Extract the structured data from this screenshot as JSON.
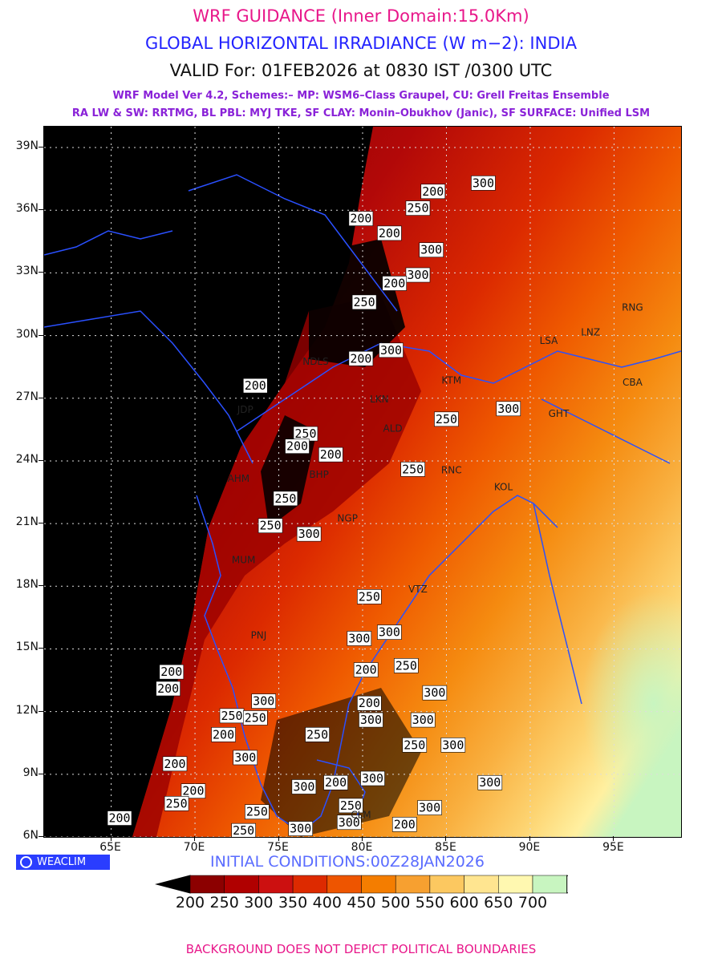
{
  "titles": {
    "line1": "WRF GUIDANCE (Inner Domain:15.0Km)",
    "line2": "GLOBAL HORIZONTAL IRRADIANCE (W m−2): INDIA",
    "line3": "VALID For: 01FEB2026 at 0830 IST /0300 UTC",
    "line4": "WRF Model Ver 4.2, Schemes:– MP: WSM6–Class Graupel, CU: Grell Freitas Ensemble",
    "line5": "RA LW & SW: RRTMG, BL PBL: MYJ TKE, SF CLAY: Monin–Obukhov (Janic), SF SURFACE: Unified LSM"
  },
  "map": {
    "lon_range": [
      61,
      99
    ],
    "lat_range": [
      6,
      40
    ],
    "lat_ticks": [
      "39N",
      "36N",
      "33N",
      "30N",
      "27N",
      "24N",
      "21N",
      "18N",
      "15N",
      "12N",
      "9N",
      "6N"
    ],
    "lon_ticks": [
      "65E",
      "70E",
      "75E",
      "80E",
      "85E",
      "90E",
      "95E"
    ],
    "gridlines": true,
    "contour_labels": [
      {
        "text": "300",
        "lon": 87.2,
        "lat": 37.3
      },
      {
        "text": "200",
        "lon": 84.2,
        "lat": 36.9
      },
      {
        "text": "250",
        "lon": 83.3,
        "lat": 36.1
      },
      {
        "text": "200",
        "lon": 79.9,
        "lat": 35.6
      },
      {
        "text": "200",
        "lon": 81.6,
        "lat": 34.9
      },
      {
        "text": "300",
        "lon": 84.1,
        "lat": 34.1
      },
      {
        "text": "300",
        "lon": 83.3,
        "lat": 32.9
      },
      {
        "text": "200",
        "lon": 81.9,
        "lat": 32.5
      },
      {
        "text": "250",
        "lon": 80.1,
        "lat": 31.6
      },
      {
        "text": "200",
        "lon": 79.9,
        "lat": 28.9
      },
      {
        "text": "300",
        "lon": 81.7,
        "lat": 29.3
      },
      {
        "text": "200",
        "lon": 73.6,
        "lat": 27.6
      },
      {
        "text": "300",
        "lon": 88.7,
        "lat": 26.5
      },
      {
        "text": "250",
        "lon": 85.0,
        "lat": 26.0
      },
      {
        "text": "250",
        "lon": 76.6,
        "lat": 25.3
      },
      {
        "text": "200",
        "lon": 76.1,
        "lat": 24.7
      },
      {
        "text": "200",
        "lon": 78.1,
        "lat": 24.3
      },
      {
        "text": "250",
        "lon": 83.0,
        "lat": 23.6
      },
      {
        "text": "250",
        "lon": 75.4,
        "lat": 22.2
      },
      {
        "text": "250",
        "lon": 74.5,
        "lat": 20.9
      },
      {
        "text": "300",
        "lon": 76.8,
        "lat": 20.5
      },
      {
        "text": "250",
        "lon": 80.4,
        "lat": 17.5
      },
      {
        "text": "300",
        "lon": 81.6,
        "lat": 15.8
      },
      {
        "text": "300",
        "lon": 79.8,
        "lat": 15.5
      },
      {
        "text": "250",
        "lon": 82.6,
        "lat": 14.2
      },
      {
        "text": "200",
        "lon": 80.2,
        "lat": 14.0
      },
      {
        "text": "200",
        "lon": 68.6,
        "lat": 13.9
      },
      {
        "text": "200",
        "lon": 68.4,
        "lat": 13.1
      },
      {
        "text": "300",
        "lon": 84.3,
        "lat": 12.9
      },
      {
        "text": "300",
        "lon": 74.1,
        "lat": 12.5
      },
      {
        "text": "200",
        "lon": 80.4,
        "lat": 12.4
      },
      {
        "text": "250",
        "lon": 72.2,
        "lat": 11.8
      },
      {
        "text": "250",
        "lon": 73.6,
        "lat": 11.7
      },
      {
        "text": "300",
        "lon": 83.6,
        "lat": 11.6
      },
      {
        "text": "300",
        "lon": 80.5,
        "lat": 11.6
      },
      {
        "text": "200",
        "lon": 71.7,
        "lat": 10.9
      },
      {
        "text": "250",
        "lon": 77.3,
        "lat": 10.9
      },
      {
        "text": "250",
        "lon": 83.1,
        "lat": 10.4
      },
      {
        "text": "300",
        "lon": 85.4,
        "lat": 10.4
      },
      {
        "text": "300",
        "lon": 73.0,
        "lat": 9.8
      },
      {
        "text": "300",
        "lon": 80.6,
        "lat": 8.8
      },
      {
        "text": "200",
        "lon": 78.4,
        "lat": 8.6
      },
      {
        "text": "300",
        "lon": 76.5,
        "lat": 8.4
      },
      {
        "text": "200",
        "lon": 68.8,
        "lat": 9.5
      },
      {
        "text": "200",
        "lon": 69.9,
        "lat": 8.2
      },
      {
        "text": "300",
        "lon": 87.6,
        "lat": 8.6
      },
      {
        "text": "250",
        "lon": 68.9,
        "lat": 7.6
      },
      {
        "text": "300",
        "lon": 84.0,
        "lat": 7.4
      },
      {
        "text": "250",
        "lon": 79.3,
        "lat": 7.5
      },
      {
        "text": "250",
        "lon": 73.7,
        "lat": 7.2
      },
      {
        "text": "200",
        "lon": 65.5,
        "lat": 6.9
      },
      {
        "text": "300",
        "lon": 79.2,
        "lat": 6.7
      },
      {
        "text": "200",
        "lon": 82.5,
        "lat": 6.6
      },
      {
        "text": "300",
        "lon": 76.3,
        "lat": 6.4
      },
      {
        "text": "250",
        "lon": 72.9,
        "lat": 6.3
      }
    ],
    "stations": [
      {
        "code": "RNG",
        "lon": 96.1,
        "lat": 31.2
      },
      {
        "code": "LNZ",
        "lon": 93.6,
        "lat": 30.0
      },
      {
        "code": "LSA",
        "lon": 91.1,
        "lat": 29.6
      },
      {
        "code": "CBA",
        "lon": 96.1,
        "lat": 27.6
      },
      {
        "code": "NDLS",
        "lon": 77.2,
        "lat": 28.6
      },
      {
        "code": "KTM",
        "lon": 85.3,
        "lat": 27.7
      },
      {
        "code": "LKN",
        "lon": 81.0,
        "lat": 26.8
      },
      {
        "code": "GHT",
        "lon": 91.7,
        "lat": 26.1
      },
      {
        "code": "JDP",
        "lon": 73.0,
        "lat": 26.3
      },
      {
        "code": "ALD",
        "lon": 81.8,
        "lat": 25.4
      },
      {
        "code": "AHM",
        "lon": 72.6,
        "lat": 23.0
      },
      {
        "code": "BHP",
        "lon": 77.4,
        "lat": 23.2
      },
      {
        "code": "RNC",
        "lon": 85.3,
        "lat": 23.4
      },
      {
        "code": "KOL",
        "lon": 88.4,
        "lat": 22.6
      },
      {
        "code": "NGP",
        "lon": 79.1,
        "lat": 21.1
      },
      {
        "code": "MUM",
        "lon": 72.9,
        "lat": 19.1
      },
      {
        "code": "VTZ",
        "lon": 83.3,
        "lat": 17.7
      },
      {
        "code": "PNJ",
        "lon": 73.8,
        "lat": 15.5
      },
      {
        "code": "CLM",
        "lon": 79.9,
        "lat": 6.9
      }
    ]
  },
  "init_text": "INITIAL CONDITIONS:00Z28JAN2026",
  "brand_text": "WEACLIM",
  "colorbar": {
    "labels": [
      "200",
      "250",
      "300",
      "350",
      "400",
      "450",
      "500",
      "550",
      "600",
      "650",
      "700"
    ],
    "colors": [
      "#8c0000",
      "#b00000",
      "#cc1010",
      "#dd2a00",
      "#ee5500",
      "#f47d00",
      "#f7a030",
      "#fcc860",
      "#ffe590",
      "#fff8b0",
      "#c8f5c0"
    ],
    "under_color": "#000000",
    "over_color": "#ffffff"
  },
  "footer": "BACKGROUND DOES NOT DEPICT POLITICAL BOUNDARIES"
}
